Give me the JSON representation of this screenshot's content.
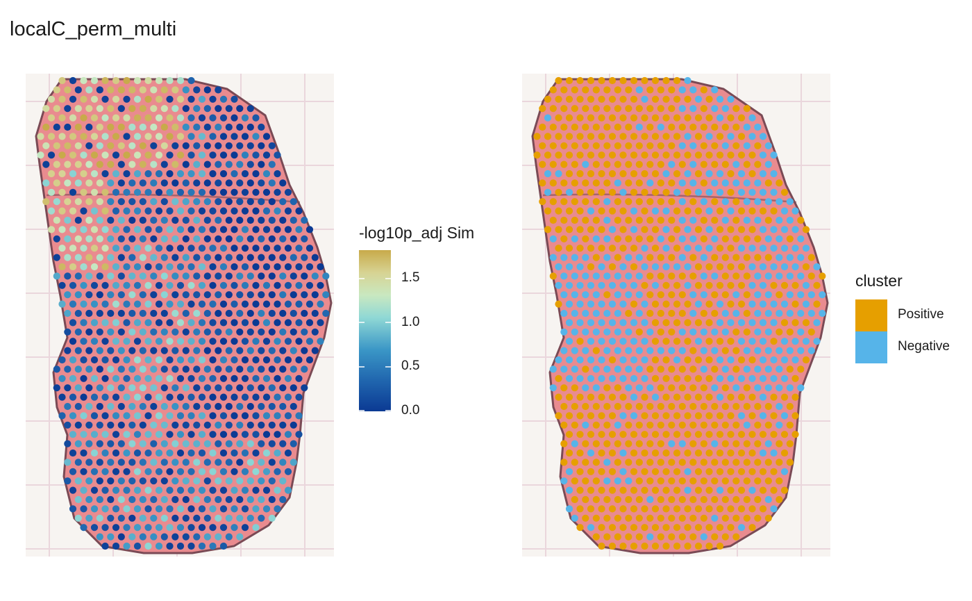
{
  "title": "localC_perm_multi",
  "colors": {
    "tissue_fill": "#e98b8f",
    "tissue_edge": "#7a4a55",
    "background": "#f7f4f1",
    "grid": "#ead6dc",
    "gradient": [
      "#0b3a93",
      "#1f63ad",
      "#3a96c6",
      "#8fd8d5",
      "#c9e8c0",
      "#d7d393",
      "#c8aa4a"
    ]
  },
  "chart_data": [
    {
      "type": "scatter",
      "panel": "left",
      "title": "",
      "legend": {
        "title": "-log10p_adj Sim",
        "type": "continuous",
        "placement": "right",
        "limits": [
          0.0,
          1.8
        ],
        "ticks": [
          "0.0",
          "0.5",
          "1.0",
          "1.5"
        ]
      },
      "note": "values per spot on spatial tissue grid (estimated)",
      "values_by_region": {
        "upper-left": [
          1.5,
          1.2,
          1.6,
          1.0,
          0.6
        ],
        "center": [
          0.1,
          0.3,
          0.9,
          1.3
        ],
        "right": [
          0.0,
          0.1,
          0.2
        ]
      }
    },
    {
      "type": "scatter",
      "panel": "right",
      "title": "",
      "legend": {
        "title": "cluster",
        "type": "discrete",
        "placement": "right",
        "items": [
          {
            "label": "Positive",
            "color": "#e69f00"
          },
          {
            "label": "Negative",
            "color": "#56b4e9"
          }
        ]
      }
    }
  ]
}
